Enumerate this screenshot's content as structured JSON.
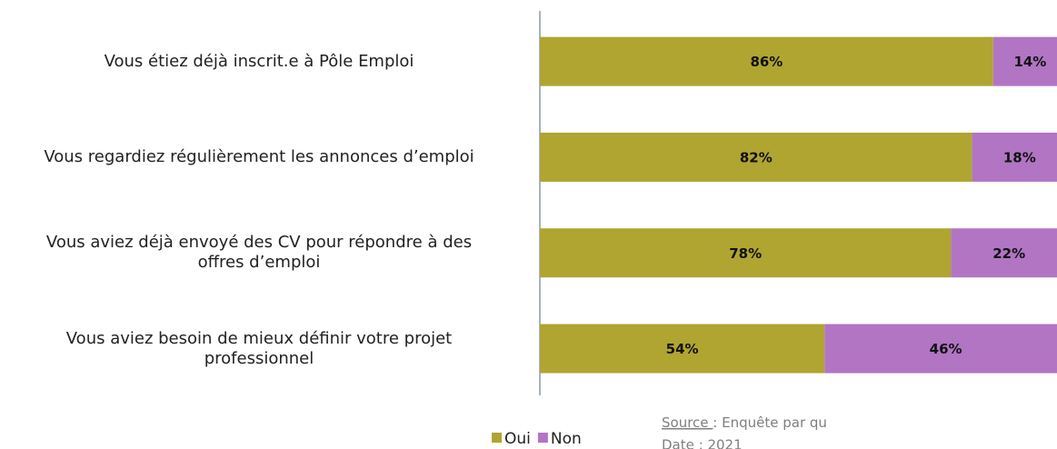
{
  "chart_data": {
    "type": "stacked_barh",
    "categories": [
      "Vous étiez déjà inscrit.e à Pôle Emploi",
      "Vous regardiez régulièrement les annonces d’emploi",
      "Vous aviez déjà envoyé des CV pour répondre à des\noffres d’emploi",
      "Vous aviez besoin de mieux définir votre projet\nprofessionnel"
    ],
    "series": [
      {
        "name": "Oui",
        "color": "#afa530",
        "values": [
          86,
          82,
          78,
          54
        ],
        "value_labels": [
          "86%",
          "82%",
          "78%",
          "54%"
        ]
      },
      {
        "name": "Non",
        "color": "#b175c4",
        "values": [
          14,
          18,
          22,
          46
        ],
        "value_labels": [
          "14%",
          "18%",
          "22%",
          "46%"
        ]
      }
    ],
    "xlim": [
      0,
      100
    ],
    "source_label": "Source ",
    "source_text": ": Enquête par qu",
    "date": "Date : 2021"
  }
}
